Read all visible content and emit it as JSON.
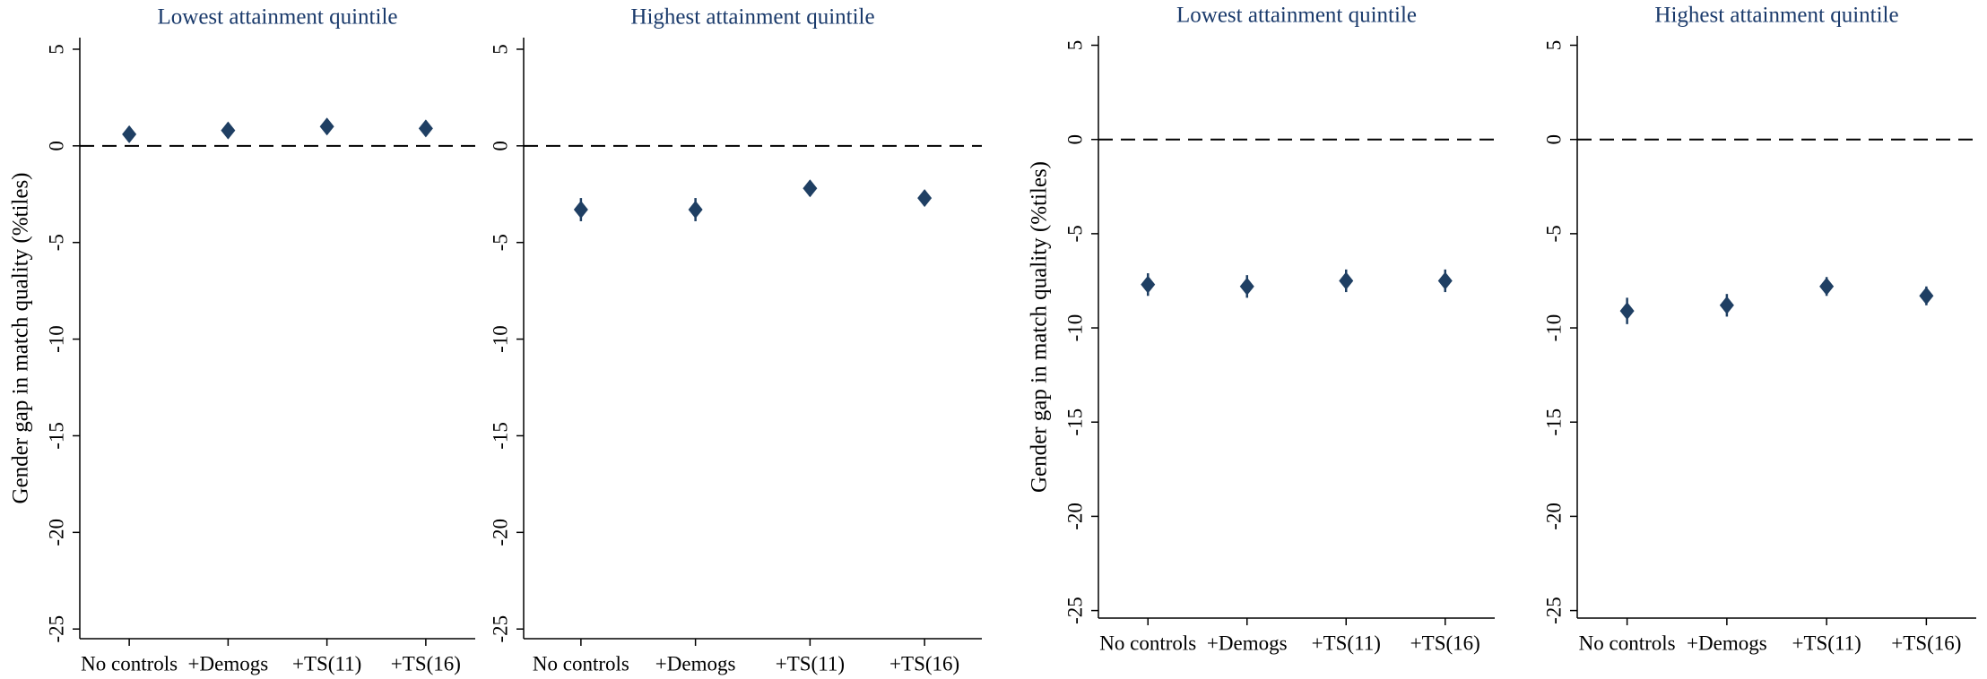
{
  "chart_data": [
    {
      "type": "errorbar",
      "title": "Lowest attainment quintile",
      "ylabel": "Gender gap in match quality (%tiles)",
      "categories": [
        "No controls",
        "+Demogs",
        "+TS(11)",
        "+TS(16)"
      ],
      "values": [
        0.6,
        0.8,
        1.0,
        0.9
      ],
      "errors": [
        0.4,
        0.4,
        0.4,
        0.4
      ],
      "color": "#1f3f63",
      "ylim": [
        -25.5,
        5.6
      ],
      "yticks": [
        5,
        0,
        -5,
        -10,
        -15,
        -20,
        -25
      ],
      "hline": 0
    },
    {
      "type": "errorbar",
      "title": "Highest attainment quintile",
      "categories": [
        "No controls",
        "+Demogs",
        "+TS(11)",
        "+TS(16)"
      ],
      "values": [
        -3.3,
        -3.3,
        -2.2,
        -2.7
      ],
      "errors": [
        0.6,
        0.6,
        0.4,
        0.4
      ],
      "color": "#1f3f63",
      "ylim": [
        -25.5,
        5.6
      ],
      "yticks": [
        5,
        0,
        -5,
        -10,
        -15,
        -20,
        -25
      ],
      "hline": 0
    },
    {
      "type": "errorbar",
      "title": "Lowest attainment quintile",
      "ylabel": "Gender gap in match quality (%tiles)",
      "categories": [
        "No controls",
        "+Demogs",
        "+TS(11)",
        "+TS(16)"
      ],
      "values": [
        -7.7,
        -7.8,
        -7.5,
        -7.5
      ],
      "errors": [
        0.6,
        0.6,
        0.6,
        0.6
      ],
      "color": "#1f3f63",
      "ylim": [
        -25.4,
        5.5
      ],
      "yticks": [
        5,
        0,
        -5,
        -10,
        -15,
        -20,
        -25
      ],
      "hline": 0
    },
    {
      "type": "errorbar",
      "title": "Highest attainment quintile",
      "categories": [
        "No controls",
        "+Demogs",
        "+TS(11)",
        "+TS(16)"
      ],
      "values": [
        -9.1,
        -8.8,
        -7.8,
        -8.3
      ],
      "errors": [
        0.7,
        0.6,
        0.5,
        0.5
      ],
      "color": "#1f3f63",
      "ylim": [
        -25.4,
        5.5
      ],
      "yticks": [
        5,
        0,
        -5,
        -10,
        -15,
        -20,
        -25
      ],
      "hline": 0
    }
  ]
}
